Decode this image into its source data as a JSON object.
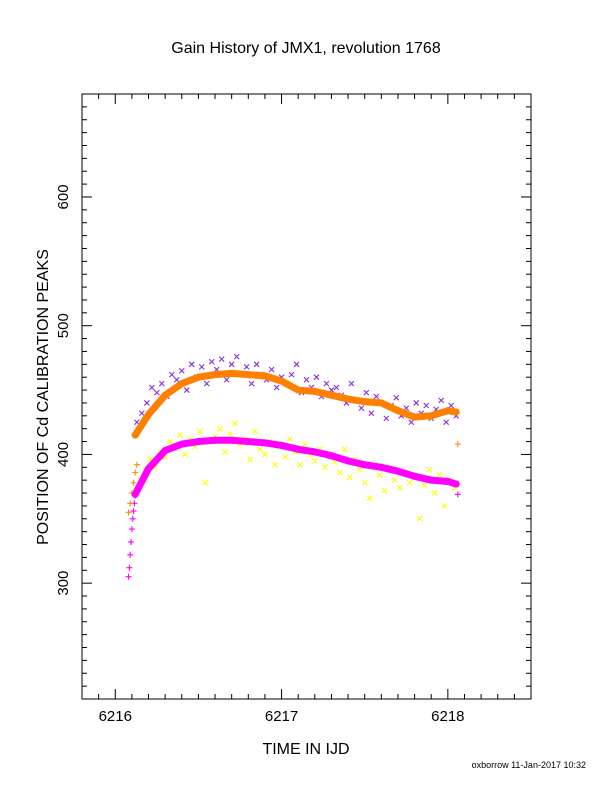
{
  "chart_data": {
    "type": "scatter",
    "title": "Gain History of JMX1, revolution 1768",
    "xlabel": "TIME IN IJD",
    "ylabel": "POSITION OF Cd CALIBRATION PEAKS",
    "xlim": [
      6215.8,
      6218.5
    ],
    "ylim": [
      210,
      680
    ],
    "xticks": [
      6216,
      6217,
      6218
    ],
    "xtick_labels": [
      "6216",
      "6217",
      "6218"
    ],
    "yticks": [
      300,
      400,
      500,
      600
    ],
    "ytick_labels": [
      "300",
      "400",
      "500",
      "600"
    ],
    "grid": false,
    "footer": "oxborrow 11-Jan-2017 10:32",
    "series": [
      {
        "marker": "x",
        "color": "#8a2be2",
        "x": [
          6216.13,
          6216.16,
          6216.19,
          6216.22,
          6216.25,
          6216.28,
          6216.31,
          6216.34,
          6216.37,
          6216.4,
          6216.43,
          6216.46,
          6216.49,
          6216.52,
          6216.55,
          6216.58,
          6216.61,
          6216.64,
          6216.67,
          6216.7,
          6216.73,
          6216.76,
          6216.79,
          6216.82,
          6216.85,
          6216.88,
          6216.91,
          6216.94,
          6216.97,
          6217.0,
          6217.03,
          6217.06,
          6217.09,
          6217.12,
          6217.15,
          6217.18,
          6217.21,
          6217.24,
          6217.27,
          6217.3,
          6217.33,
          6217.36,
          6217.39,
          6217.42,
          6217.45,
          6217.48,
          6217.51,
          6217.54,
          6217.57,
          6217.6,
          6217.63,
          6217.66,
          6217.69,
          6217.72,
          6217.75,
          6217.78,
          6217.81,
          6217.84,
          6217.87,
          6217.9,
          6217.93,
          6217.96,
          6217.99,
          6218.02,
          6218.05
        ],
        "y": [
          425,
          432,
          440,
          452,
          448,
          455,
          445,
          462,
          458,
          465,
          450,
          470,
          460,
          468,
          455,
          472,
          466,
          474,
          458,
          470,
          476,
          462,
          468,
          455,
          470,
          462,
          458,
          466,
          452,
          460,
          455,
          462,
          470,
          448,
          458,
          452,
          460,
          445,
          455,
          450,
          452,
          446,
          440,
          455,
          442,
          436,
          448,
          432,
          445,
          440,
          428,
          438,
          444,
          430,
          436,
          425,
          440,
          432,
          438,
          428,
          435,
          442,
          425,
          438,
          430
        ]
      },
      {
        "marker": "x",
        "color": "#ffff00",
        "x": [
          6216.12,
          6216.15,
          6216.18,
          6216.21,
          6216.24,
          6216.27,
          6216.3,
          6216.33,
          6216.36,
          6216.39,
          6216.42,
          6216.45,
          6216.48,
          6216.51,
          6216.54,
          6216.57,
          6216.6,
          6216.63,
          6216.66,
          6216.69,
          6216.72,
          6216.75,
          6216.78,
          6216.81,
          6216.84,
          6216.87,
          6216.9,
          6216.93,
          6216.96,
          6216.99,
          6217.02,
          6217.05,
          6217.08,
          6217.11,
          6217.14,
          6217.17,
          6217.2,
          6217.23,
          6217.26,
          6217.29,
          6217.32,
          6217.35,
          6217.38,
          6217.41,
          6217.44,
          6217.47,
          6217.5,
          6217.53,
          6217.56,
          6217.59,
          6217.62,
          6217.65,
          6217.68,
          6217.71,
          6217.74,
          6217.77,
          6217.8,
          6217.83,
          6217.86,
          6217.89,
          6217.92,
          6217.95,
          6217.98,
          6218.01,
          6218.04
        ],
        "y": [
          372,
          380,
          388,
          396,
          390,
          402,
          398,
          410,
          404,
          415,
          400,
          412,
          406,
          418,
          378,
          410,
          414,
          420,
          402,
          416,
          424,
          408,
          412,
          396,
          418,
          404,
          400,
          410,
          392,
          406,
          398,
          412,
          402,
          392,
          408,
          400,
          395,
          404,
          390,
          398,
          394,
          386,
          404,
          382,
          396,
          388,
          378,
          366,
          392,
          384,
          372,
          390,
          380,
          374,
          386,
          378,
          382,
          350,
          376,
          388,
          370,
          384,
          360,
          380,
          374
        ]
      },
      {
        "marker": "+",
        "color": "#ff00ff",
        "x": [
          6216.08,
          6216.085,
          6216.09,
          6216.095,
          6216.1,
          6216.105,
          6216.11,
          6216.115,
          6216.12,
          6218.06
        ],
        "y": [
          305,
          312,
          322,
          332,
          342,
          350,
          356,
          362,
          368,
          369
        ]
      },
      {
        "marker": "+",
        "color": "#ff8c00",
        "x": [
          6216.08,
          6216.09,
          6216.1,
          6216.11,
          6216.12,
          6216.13,
          6218.06
        ],
        "y": [
          355,
          362,
          370,
          378,
          386,
          392,
          408
        ]
      },
      {
        "marker": "curve",
        "color": "#ff7f00",
        "x": [
          6216.12,
          6216.2,
          6216.3,
          6216.4,
          6216.5,
          6216.6,
          6216.7,
          6216.8,
          6216.9,
          6217.0,
          6217.1,
          6217.2,
          6217.3,
          6217.4,
          6217.5,
          6217.6,
          6217.7,
          6217.8,
          6217.9,
          6218.0,
          6218.05
        ],
        "y": [
          415,
          431,
          446,
          455,
          460,
          462,
          463,
          462,
          461,
          457,
          450,
          449,
          446,
          443,
          441,
          440,
          434,
          429,
          430,
          434,
          433
        ]
      },
      {
        "marker": "curve",
        "color": "#ff00ff",
        "x": [
          6216.12,
          6216.2,
          6216.3,
          6216.4,
          6216.5,
          6216.6,
          6216.7,
          6216.8,
          6216.9,
          6217.0,
          6217.1,
          6217.2,
          6217.3,
          6217.4,
          6217.5,
          6217.6,
          6217.7,
          6217.8,
          6217.9,
          6218.0,
          6218.05
        ],
        "y": [
          369,
          389,
          403,
          408,
          410,
          411,
          411,
          410,
          409,
          407,
          404,
          402,
          399,
          395,
          392,
          390,
          387,
          383,
          380,
          379,
          377
        ]
      }
    ]
  }
}
